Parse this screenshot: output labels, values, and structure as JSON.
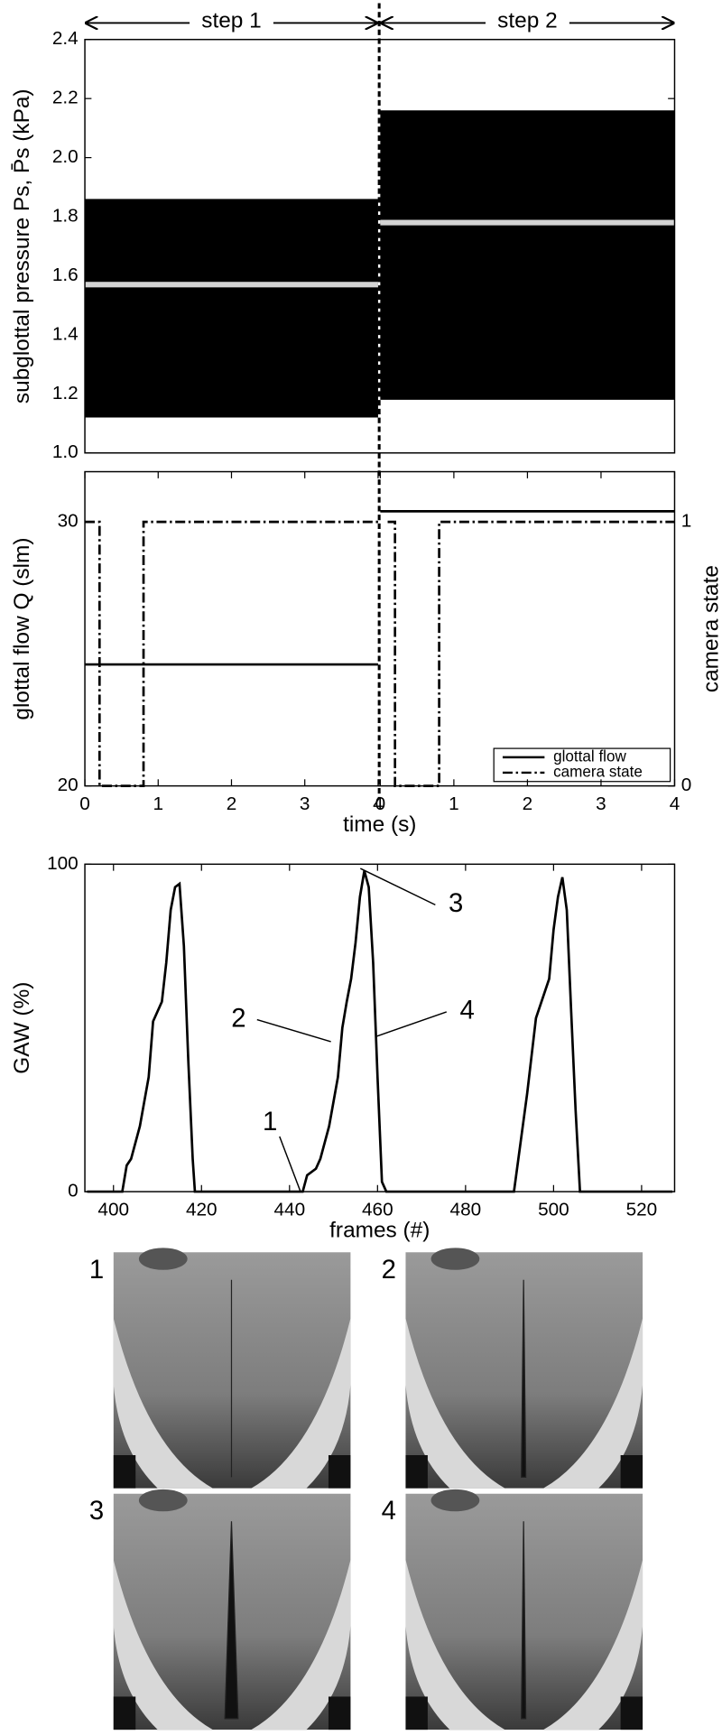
{
  "chart_data": [
    {
      "type": "range",
      "ylabel": "subglottal pressure Ps, P̄s (kPa)",
      "annotations": [
        "step 1",
        "step 2"
      ],
      "ylim": [
        1.0,
        2.4
      ],
      "yticks": [
        {
          "value": 1.0,
          "label": "1.0"
        },
        1.2,
        1.4,
        1.6,
        1.8,
        {
          "value": 2.0,
          "label": "2.0"
        },
        2.2,
        2.4
      ],
      "xaxes": [
        {
          "xlim": [
            0,
            4
          ]
        },
        {
          "xlim": [
            0,
            4
          ]
        }
      ],
      "color": "#000000",
      "mean_color": "#d4d4d4",
      "segments": [
        {
          "x": [
            0,
            4
          ],
          "min": 1.12,
          "max": 1.86,
          "mean": 1.57
        },
        {
          "x": [
            0,
            4
          ],
          "min": 1.18,
          "max": 2.16,
          "mean": 1.78
        }
      ]
    },
    {
      "type": "line",
      "ylabel": "glottal flow Q (slm)",
      "y2label": "camera state",
      "xlabel": "time (s)",
      "ylim": [
        20,
        31.9
      ],
      "yticks": [
        20,
        30
      ],
      "y2lim": [
        0,
        1.19
      ],
      "y2ticks": [
        0,
        1
      ],
      "xaxes": [
        {
          "xlim": [
            0,
            4
          ],
          "xticks": [
            0,
            1,
            2,
            3,
            4
          ]
        },
        {
          "xlim": [
            0,
            4
          ],
          "xticks": [
            0,
            1,
            2,
            3,
            4
          ]
        }
      ],
      "legend": "lower right",
      "series": [
        {
          "name": "glottal flow",
          "color": "#000000",
          "style": "solid",
          "segments": [
            {
              "x": [
                0,
                4
              ],
              "values": [
                24.6,
                24.6
              ]
            },
            {
              "x": [
                0,
                4
              ],
              "values": [
                30.4,
                30.4
              ]
            }
          ]
        },
        {
          "name": "camera state",
          "color": "#000000",
          "style": "dashdot",
          "axis": "y2",
          "segments": [
            {
              "x": [
                0,
                0.2,
                0.2,
                0.8,
                0.8,
                4
              ],
              "values": [
                1,
                1,
                0,
                0,
                1,
                1
              ]
            },
            {
              "x": [
                0.1,
                0.2,
                0.2,
                0.8,
                0.8,
                4
              ],
              "values": [
                1,
                1,
                0,
                0,
                1,
                1
              ]
            }
          ]
        }
      ]
    },
    {
      "type": "line",
      "ylabel": "GAW (%)",
      "xlabel": "frames (#)",
      "xlim": [
        393.5,
        527.5
      ],
      "xticks": [
        400,
        420,
        440,
        460,
        480,
        500,
        520
      ],
      "ylim": [
        0,
        100
      ],
      "yticks": [
        0,
        100
      ],
      "series": [
        {
          "color": "#000000",
          "style": "solid",
          "x": [
            394,
            402,
            403,
            404,
            406,
            408,
            409,
            411,
            412,
            413,
            414,
            415,
            416,
            417,
            418,
            418.5,
            443,
            444,
            446,
            447,
            449,
            451,
            452,
            453,
            454,
            455,
            456,
            457,
            458,
            459,
            460,
            461,
            462,
            491,
            492,
            494,
            496,
            497,
            499,
            500,
            501,
            502,
            503,
            504,
            505,
            506,
            527
          ],
          "values": [
            0,
            0,
            8,
            10,
            20,
            35,
            52,
            58,
            70,
            86,
            93,
            94,
            75,
            40,
            10,
            0,
            0,
            5,
            7,
            10,
            20,
            35,
            50,
            58,
            65,
            76,
            90,
            98,
            93,
            70,
            35,
            3,
            0,
            0,
            10,
            30,
            53,
            57,
            65,
            80,
            90,
            96,
            86,
            55,
            25,
            0,
            0
          ]
        }
      ],
      "annotations": [
        {
          "text": "1",
          "x": 442.5,
          "y": 0
        },
        {
          "text": "2",
          "x": 449.4,
          "y": 45.8
        },
        {
          "text": "3",
          "x": 456.1,
          "y": 98.7
        },
        {
          "text": "4",
          "x": 459.9,
          "y": 47.5
        }
      ]
    }
  ],
  "images": [
    {
      "label": "1"
    },
    {
      "label": "2"
    },
    {
      "label": "3"
    },
    {
      "label": "4"
    }
  ]
}
